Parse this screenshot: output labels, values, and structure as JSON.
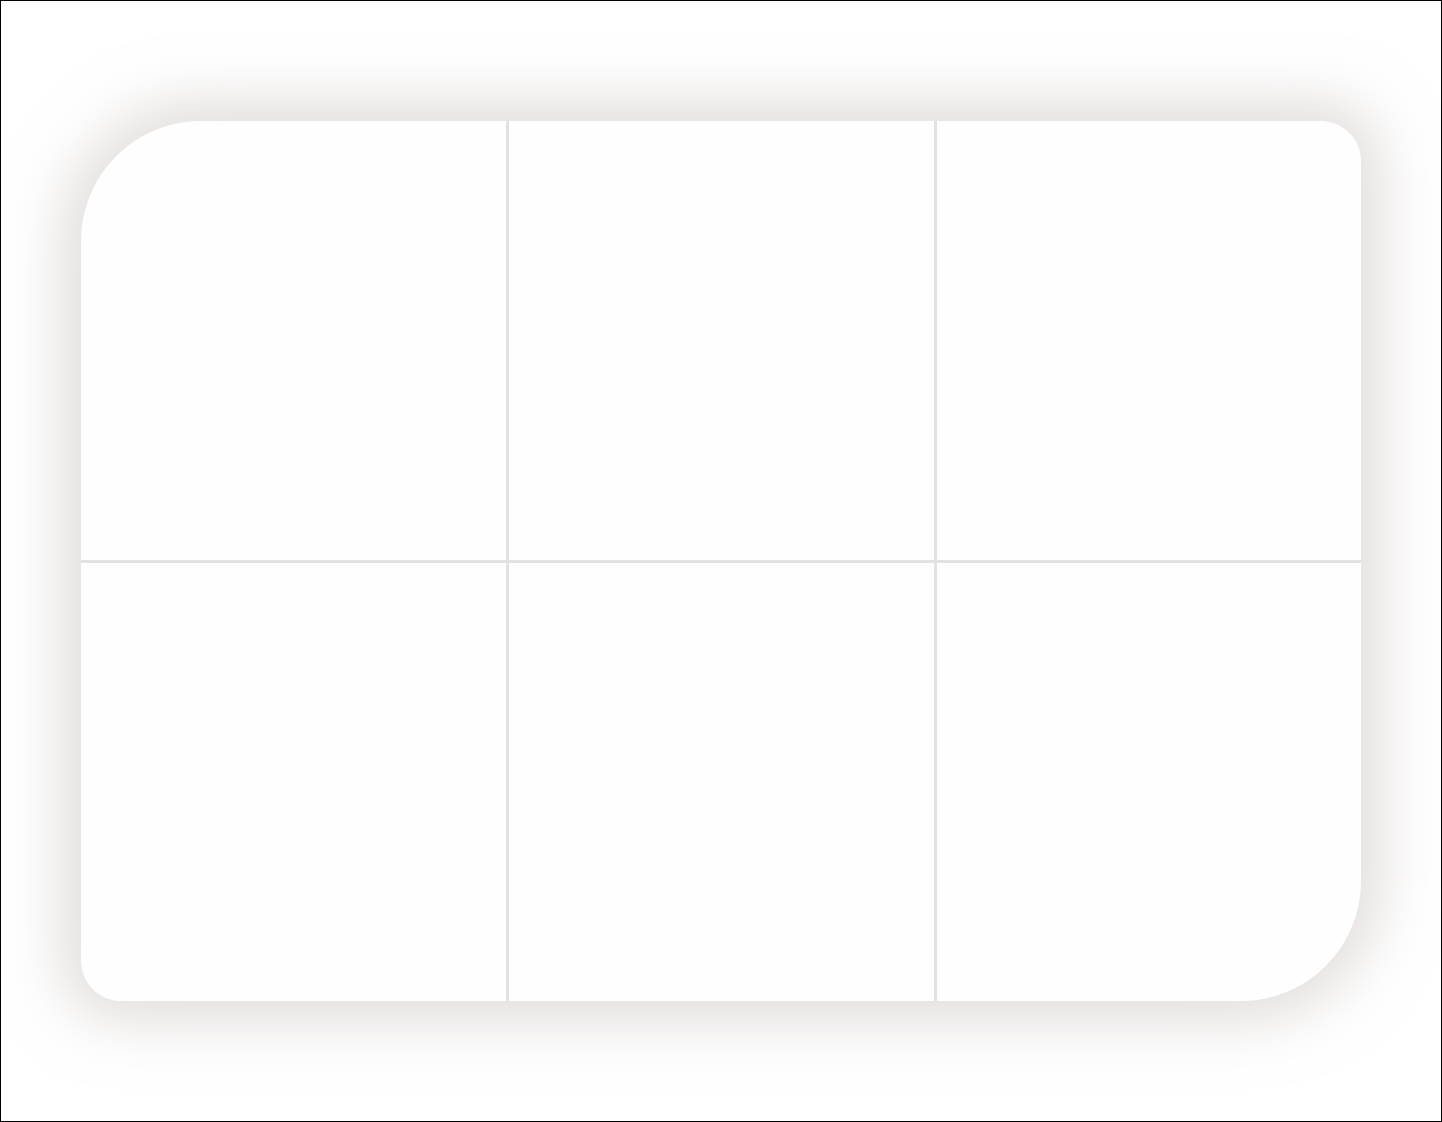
{
  "canvas": {
    "background": "#ffffff",
    "frame_color": "#000000"
  },
  "card": {
    "background": "#fefefe",
    "shadow_color": "#c6c0ba",
    "divider_color": "#e4e2e1",
    "columns": 3,
    "rows": 2,
    "cells": [
      {
        "id": "cell-1",
        "content": ""
      },
      {
        "id": "cell-2",
        "content": ""
      },
      {
        "id": "cell-3",
        "content": ""
      },
      {
        "id": "cell-4",
        "content": ""
      },
      {
        "id": "cell-5",
        "content": ""
      },
      {
        "id": "cell-6",
        "content": ""
      }
    ]
  }
}
